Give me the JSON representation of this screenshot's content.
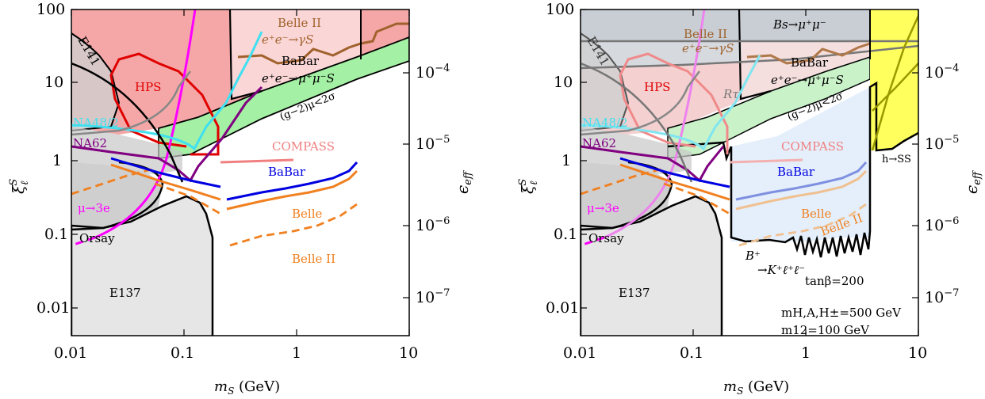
{
  "chart_data": [
    {
      "type": "area",
      "panel": "left",
      "xlabel": "m_S (GeV)",
      "ylabel": "ξ_ℓ^S",
      "ylabel_right": "ϵ_eff",
      "xscale": "log",
      "yscale": "log",
      "xlim": [
        0.01,
        10
      ],
      "ylim": [
        0.004,
        100
      ],
      "x_ticks": [
        "0.01",
        "0.1",
        "1",
        "10"
      ],
      "y_ticks": [
        "100",
        "10",
        "1",
        "0.1",
        "0.01"
      ],
      "y2_ticks": [
        "10^-4",
        "10^-5",
        "10^-6",
        "10^-7"
      ],
      "regions": [
        {
          "name": "E137",
          "color": "#e6e6e6",
          "x": [
            0.01,
            0.22,
            0.22
          ],
          "y": [
            0.005,
            0.005,
            0.3
          ]
        },
        {
          "name": "Orsay",
          "color": "#e6e6e6",
          "x": [
            0.01,
            0.09
          ],
          "y": [
            0.12,
            0.5
          ]
        },
        {
          "name": "E141",
          "color": "#d9d9d9",
          "x": [
            0.01,
            0.045
          ],
          "y": [
            20,
            3
          ]
        },
        {
          "name": "NA48/2",
          "color": "#00e5ee",
          "x": [
            0.01,
            0.1
          ],
          "y": [
            2.8,
            1.6
          ]
        },
        {
          "name": "NA62",
          "color": "#800080",
          "x": [
            0.01,
            0.17
          ],
          "y": [
            1.45,
            1.1
          ]
        },
        {
          "name": "HPS",
          "color": "#e00000",
          "x": [
            0.02,
            0.2
          ],
          "y": [
            1.2,
            30
          ]
        },
        {
          "name": "μ→3e",
          "color": "#ff00ff",
          "x": [
            0.01,
            0.12
          ],
          "y": [
            0.16,
            100
          ]
        },
        {
          "name": "(g−2)_μ<2σ",
          "color": "#8ee88e",
          "x": [
            0.1,
            10
          ],
          "y": [
            1.2,
            50
          ]
        },
        {
          "name": "BaBar e⁺e⁻→μ⁺μ⁻S",
          "color": "#000000",
          "x": [
            0.21,
            10
          ],
          "y": [
            1.4,
            100
          ]
        },
        {
          "name": "Belle II e⁺e⁻→γS",
          "color": "#a0522d",
          "x": [
            0.3,
            3.8
          ],
          "y": [
            45,
            100
          ]
        }
      ],
      "curves": [
        {
          "name": "COMPASS",
          "color": "#f08080",
          "x": [
            0.22,
            0.9
          ],
          "y": [
            0.95,
            1.1
          ]
        },
        {
          "name": "BaBar",
          "color": "#0000e0",
          "x": [
            0.024,
            0.22,
            0.27,
            3.8
          ],
          "y": [
            0.85,
            0.45,
            0.3,
            0.92
          ]
        },
        {
          "name": "Belle",
          "color": "#f08020",
          "x": [
            0.024,
            0.22,
            0.27,
            3.8
          ],
          "y": [
            0.75,
            0.38,
            0.27,
            0.8
          ]
        },
        {
          "name": "Belle II",
          "color": "#f08020",
          "x": [
            0.28,
            3.8
          ],
          "y": [
            0.072,
            0.28
          ]
        }
      ]
    },
    {
      "type": "area",
      "panel": "right",
      "xlabel": "m_S (GeV)",
      "ylabel": "ξ_ℓ^S",
      "ylabel_right": "ϵ_eff",
      "xscale": "log",
      "yscale": "log",
      "xlim": [
        0.01,
        10
      ],
      "ylim": [
        0.004,
        100
      ],
      "x_ticks": [
        "0.01",
        "0.1",
        "1",
        "10"
      ],
      "y_ticks": [
        "100",
        "10",
        "1",
        "0.1",
        "0.01"
      ],
      "y2_ticks": [
        "10^-4",
        "10^-5",
        "10^-6",
        "10^-7"
      ],
      "regions": [
        {
          "name": "B_s→μ⁺μ⁻",
          "color": "#999999",
          "x": [
            0.01,
            10
          ],
          "y": [
            38,
            100
          ]
        },
        {
          "name": "R_τ",
          "color": "#808080",
          "x": [
            0.01,
            3.8
          ],
          "y": [
            18,
            30
          ]
        },
        {
          "name": "h→SS",
          "color": "#ffff40",
          "x": [
            3.8,
            10
          ],
          "y": [
            1.5,
            100
          ]
        },
        {
          "name": "B⁺→K⁺ℓ⁺ℓ⁻",
          "color": "#ddeeff",
          "x": [
            0.22,
            3.8
          ],
          "y": [
            0.05,
            1.4
          ]
        },
        {
          "name": "E137",
          "color": "#e6e6e6",
          "x": [
            0.01,
            0.22
          ],
          "y": [
            0.005,
            0.3
          ]
        },
        {
          "name": "Orsay",
          "color": "#e6e6e6",
          "x": [
            0.01,
            0.09
          ],
          "y": [
            0.12,
            0.5
          ]
        }
      ],
      "curves": [
        {
          "name": "COMPASS",
          "color": "#f4a9a9",
          "x": [
            0.22,
            0.9
          ],
          "y": [
            0.95,
            1.1
          ]
        },
        {
          "name": "BaBar",
          "color": "#8090e0",
          "x": [
            0.27,
            3.8
          ],
          "y": [
            0.3,
            0.92
          ]
        },
        {
          "name": "Belle",
          "color": "#f0c090",
          "x": [
            0.27,
            3.8
          ],
          "y": [
            0.27,
            0.8
          ]
        },
        {
          "name": "Belle II",
          "color": "#f0c090",
          "x": [
            0.28,
            3.8
          ],
          "y": [
            0.072,
            0.28
          ]
        }
      ],
      "annotations": [
        "tanβ=200",
        "m_{H,A,H±}=500 GeV",
        "m12=100 GeV"
      ]
    }
  ],
  "labels": {
    "left": {
      "belle2_a": "Belle II",
      "belle2_b": "e⁺e⁻→γS",
      "babar_a": "BaBar",
      "babar_b": "e⁺e⁻→μ⁺μ⁻S",
      "e141": "E141",
      "hps": "HPS",
      "na48": "NA48/2",
      "na62": "NA62",
      "gm2": "(g−2)μ<2σ",
      "compass": "COMPASS",
      "babar": "BaBar",
      "belle": "Belle",
      "belle2": "Belle II",
      "mu3e": "μ→3e",
      "orsay": "Orsay",
      "e137": "E137"
    },
    "right": {
      "bsmumu": "Bs→μ⁺μ⁻",
      "belle2_a": "Belle II",
      "belle2_b": "e⁺e⁻→γS",
      "babar_a": "BaBar",
      "babar_b": "e⁺e⁻→μ⁺μ⁻S",
      "e141": "E141",
      "hps": "HPS",
      "rtau": "Rτ",
      "na48": "NA48/2",
      "na62": "NA62",
      "gm2": "(g−2)μ<2σ",
      "compass": "COMPASS",
      "babar": "BaBar",
      "belle": "Belle",
      "belle2": "Belle II",
      "mu3e": "μ→3e",
      "orsay": "Orsay",
      "e137": "E137",
      "bk_a": "B⁺",
      "bk_b": "→K⁺ℓ⁺ℓ⁻",
      "hss": "h→SS",
      "tanb": "tanβ=200",
      "mh": "mH,A,H±=500 GeV",
      "m12": "m12=100 GeV"
    }
  },
  "colors": {
    "red_fill": "#f4a6a6",
    "pink_fill": "#fbd4d4",
    "green_fill": "#a0f0a0",
    "grey_fill": "#e6e6e6",
    "brown": "#a0622d",
    "cyan": "#40e0f0",
    "purple": "#800080",
    "magenta": "#ff00ff",
    "blue": "#0000e0",
    "orange": "#f08020",
    "yellow": "#ffff60"
  }
}
